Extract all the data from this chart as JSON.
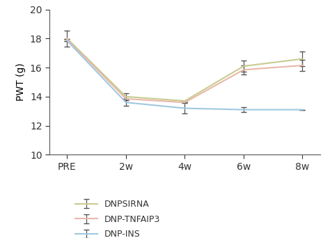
{
  "x_labels": [
    "PRE",
    "2w",
    "4w",
    "6w",
    "8w"
  ],
  "series": [
    {
      "label": "DNPSIRNA",
      "color": "#c8cc90",
      "values": [
        18.0,
        14.0,
        13.7,
        16.1,
        16.6
      ],
      "errors": [
        0.55,
        0.25,
        0.0,
        0.4,
        0.5
      ]
    },
    {
      "label": "DNP-TNFAIP3",
      "color": "#e8b8a8",
      "values": [
        17.95,
        13.85,
        13.6,
        15.85,
        16.15
      ],
      "errors": [
        0.0,
        0.0,
        0.0,
        0.3,
        0.4
      ]
    },
    {
      "label": "DNP-INS",
      "color": "#a0c8e0",
      "values": [
        17.85,
        13.6,
        13.2,
        13.1,
        13.1
      ],
      "errors": [
        0.0,
        0.25,
        0.35,
        0.15,
        0.0
      ]
    }
  ],
  "ylabel": "PWT (g)",
  "ylim": [
    10,
    20
  ],
  "yticks": [
    10,
    12,
    14,
    16,
    18,
    20
  ],
  "bg_color": "#ffffff",
  "capsize": 3,
  "linewidth": 1.5,
  "legend_fontsize": 9,
  "tick_fontsize": 10,
  "ylabel_fontsize": 10
}
